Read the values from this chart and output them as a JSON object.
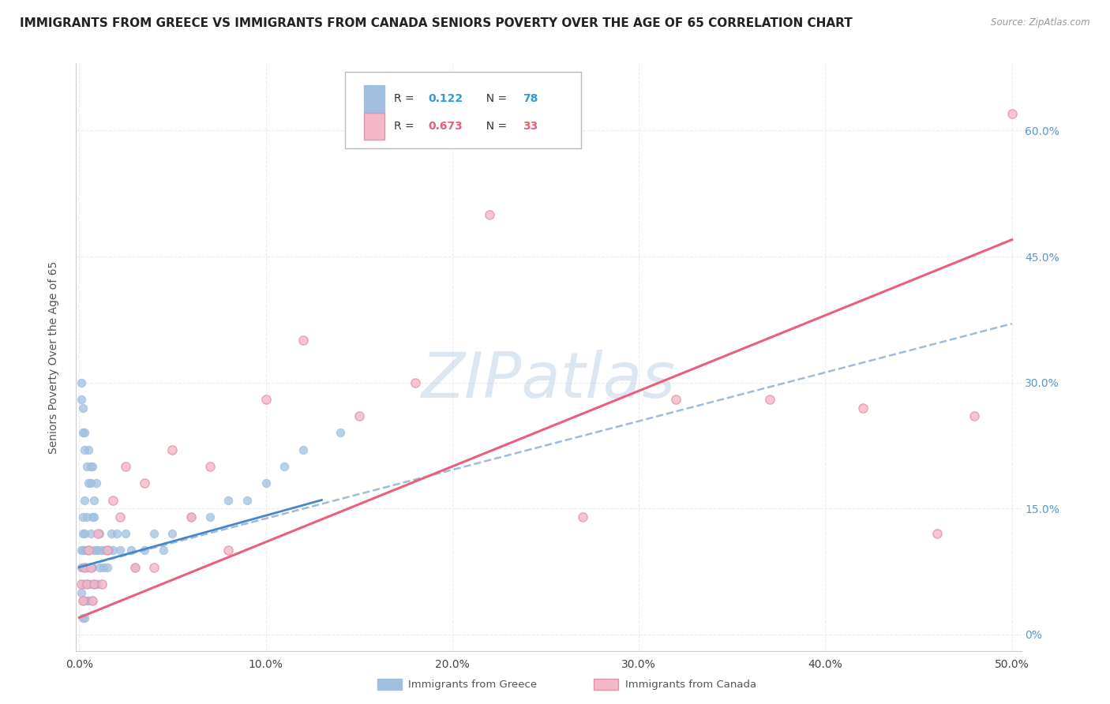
{
  "title": "IMMIGRANTS FROM GREECE VS IMMIGRANTS FROM CANADA SENIORS POVERTY OVER THE AGE OF 65 CORRELATION CHART",
  "source": "Source: ZipAtlas.com",
  "ylabel": "Seniors Poverty Over the Age of 65",
  "legend_label_greece": "Immigrants from Greece",
  "legend_label_canada": "Immigrants from Canada",
  "legend_R_greece": "0.122",
  "legend_N_greece": "78",
  "legend_R_canada": "0.673",
  "legend_N_canada": "33",
  "xlim": [
    -0.002,
    0.505
  ],
  "ylim": [
    -0.02,
    0.68
  ],
  "xtick_labels": [
    "0.0%",
    "10.0%",
    "20.0%",
    "30.0%",
    "40.0%",
    "50.0%"
  ],
  "xtick_vals": [
    0.0,
    0.1,
    0.2,
    0.3,
    0.4,
    0.5
  ],
  "ytick_labels_right": [
    "0%",
    "15.0%",
    "30.0%",
    "45.0%",
    "60.0%"
  ],
  "ytick_vals": [
    0.0,
    0.15,
    0.3,
    0.45,
    0.6
  ],
  "watermark": "ZIPatlas",
  "color_greece": "#a0bfdf",
  "color_canada": "#f4b8c8",
  "color_canada_edge": "#e890a8",
  "color_greece_line": "#90b0d0",
  "color_canada_line": "#e8607a",
  "color_R_greece": "#3399dd",
  "color_N_greece": "#3399dd",
  "color_R_canada": "#e8607a",
  "color_N_canada": "#e8607a",
  "color_ytick_right": "#5599cc",
  "greece_x": [
    0.001,
    0.001,
    0.001,
    0.002,
    0.002,
    0.002,
    0.002,
    0.002,
    0.002,
    0.002,
    0.003,
    0.003,
    0.003,
    0.003,
    0.003,
    0.003,
    0.003,
    0.004,
    0.004,
    0.004,
    0.004,
    0.004,
    0.005,
    0.005,
    0.005,
    0.005,
    0.006,
    0.006,
    0.006,
    0.006,
    0.007,
    0.007,
    0.007,
    0.008,
    0.008,
    0.008,
    0.009,
    0.009,
    0.01,
    0.01,
    0.011,
    0.011,
    0.012,
    0.013,
    0.014,
    0.015,
    0.016,
    0.017,
    0.018,
    0.02,
    0.022,
    0.025,
    0.028,
    0.03,
    0.035,
    0.04,
    0.045,
    0.05,
    0.06,
    0.07,
    0.08,
    0.09,
    0.1,
    0.11,
    0.12,
    0.14,
    0.001,
    0.001,
    0.002,
    0.002,
    0.003,
    0.003,
    0.004,
    0.005,
    0.006,
    0.007,
    0.008,
    0.009
  ],
  "greece_y": [
    0.05,
    0.08,
    0.1,
    0.02,
    0.04,
    0.06,
    0.08,
    0.1,
    0.12,
    0.14,
    0.02,
    0.04,
    0.06,
    0.08,
    0.1,
    0.12,
    0.16,
    0.04,
    0.06,
    0.08,
    0.1,
    0.14,
    0.04,
    0.06,
    0.1,
    0.18,
    0.06,
    0.08,
    0.12,
    0.2,
    0.04,
    0.08,
    0.14,
    0.06,
    0.1,
    0.14,
    0.06,
    0.1,
    0.06,
    0.1,
    0.08,
    0.12,
    0.1,
    0.08,
    0.1,
    0.08,
    0.1,
    0.12,
    0.1,
    0.12,
    0.1,
    0.12,
    0.1,
    0.08,
    0.1,
    0.12,
    0.1,
    0.12,
    0.14,
    0.14,
    0.16,
    0.16,
    0.18,
    0.2,
    0.22,
    0.24,
    0.28,
    0.3,
    0.24,
    0.27,
    0.22,
    0.24,
    0.2,
    0.22,
    0.18,
    0.2,
    0.16,
    0.18
  ],
  "canada_x": [
    0.001,
    0.002,
    0.003,
    0.004,
    0.005,
    0.006,
    0.007,
    0.008,
    0.01,
    0.012,
    0.015,
    0.018,
    0.022,
    0.025,
    0.03,
    0.035,
    0.04,
    0.05,
    0.06,
    0.07,
    0.08,
    0.1,
    0.12,
    0.15,
    0.18,
    0.22,
    0.27,
    0.32,
    0.37,
    0.42,
    0.46,
    0.48,
    0.5
  ],
  "canada_y": [
    0.06,
    0.04,
    0.08,
    0.06,
    0.1,
    0.08,
    0.04,
    0.06,
    0.12,
    0.06,
    0.1,
    0.16,
    0.14,
    0.2,
    0.08,
    0.18,
    0.08,
    0.22,
    0.14,
    0.2,
    0.1,
    0.28,
    0.35,
    0.26,
    0.3,
    0.5,
    0.14,
    0.28,
    0.28,
    0.27,
    0.12,
    0.26,
    0.62
  ],
  "greece_trend_x": [
    0.0,
    0.5
  ],
  "greece_trend_y": [
    0.08,
    0.37
  ],
  "canada_trend_x": [
    0.0,
    0.5
  ],
  "canada_trend_y": [
    0.02,
    0.47
  ],
  "greece_short_line_x": [
    0.0,
    0.13
  ],
  "greece_short_line_y": [
    0.08,
    0.16
  ],
  "background_color": "#ffffff",
  "grid_color": "#e8e8e8",
  "title_fontsize": 11,
  "axis_label_fontsize": 10,
  "tick_fontsize": 10,
  "watermark_color": "#c0d4e8",
  "watermark_fontsize": 58
}
